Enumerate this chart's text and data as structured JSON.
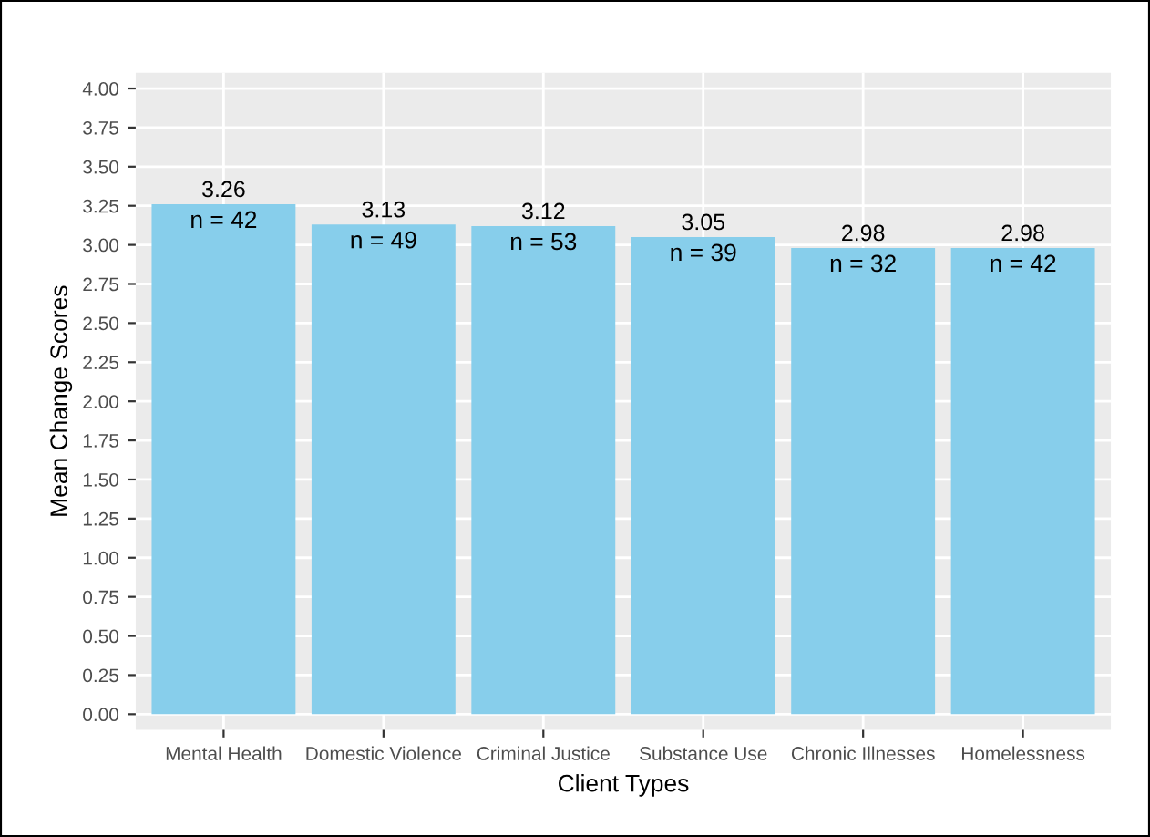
{
  "chart_data": {
    "type": "bar",
    "xlabel": "Client Types",
    "ylabel": "Mean Change Scores",
    "categories": [
      "Mental Health",
      "Domestic Violence",
      "Criminal Justice",
      "Substance Use",
      "Chronic Illnesses",
      "Homelessness"
    ],
    "values": [
      3.26,
      3.13,
      3.12,
      3.05,
      2.98,
      2.98
    ],
    "color": "#87ceeb",
    "data_labels": true,
    "annotations": [
      {
        "text": "n = 42",
        "x": "Mental Health",
        "y": 3.26
      },
      {
        "text": "n = 49",
        "x": "Domestic Violence",
        "y": 3.13
      },
      {
        "text": "n = 53",
        "x": "Criminal Justice",
        "y": 3.12
      },
      {
        "text": "n = 39",
        "x": "Substance Use",
        "y": 3.05
      },
      {
        "text": "n = 32",
        "x": "Chronic Illnesses",
        "y": 2.98
      },
      {
        "text": "n = 42",
        "x": "Homelessness",
        "y": 2.98
      }
    ],
    "ylim": [
      -0.1,
      4.1
    ],
    "yticks": [
      {
        "value": 0,
        "label": "0.00"
      },
      {
        "value": 0.25,
        "label": "0.25"
      },
      {
        "value": 0.5,
        "label": "0.50"
      },
      {
        "value": 0.75,
        "label": "0.75"
      },
      {
        "value": 1,
        "label": "1.00"
      },
      {
        "value": 1.25,
        "label": "1.25"
      },
      {
        "value": 1.5,
        "label": "1.50"
      },
      {
        "value": 1.75,
        "label": "1.75"
      },
      {
        "value": 2,
        "label": "2.00"
      },
      {
        "value": 2.25,
        "label": "2.25"
      },
      {
        "value": 2.5,
        "label": "2.50"
      },
      {
        "value": 2.75,
        "label": "2.75"
      },
      {
        "value": 3,
        "label": "3.00"
      },
      {
        "value": 3.25,
        "label": "3.25"
      },
      {
        "value": 3.5,
        "label": "3.50"
      },
      {
        "value": 3.75,
        "label": "3.75"
      },
      {
        "value": 4,
        "label": "4.00"
      }
    ],
    "grid": true
  }
}
